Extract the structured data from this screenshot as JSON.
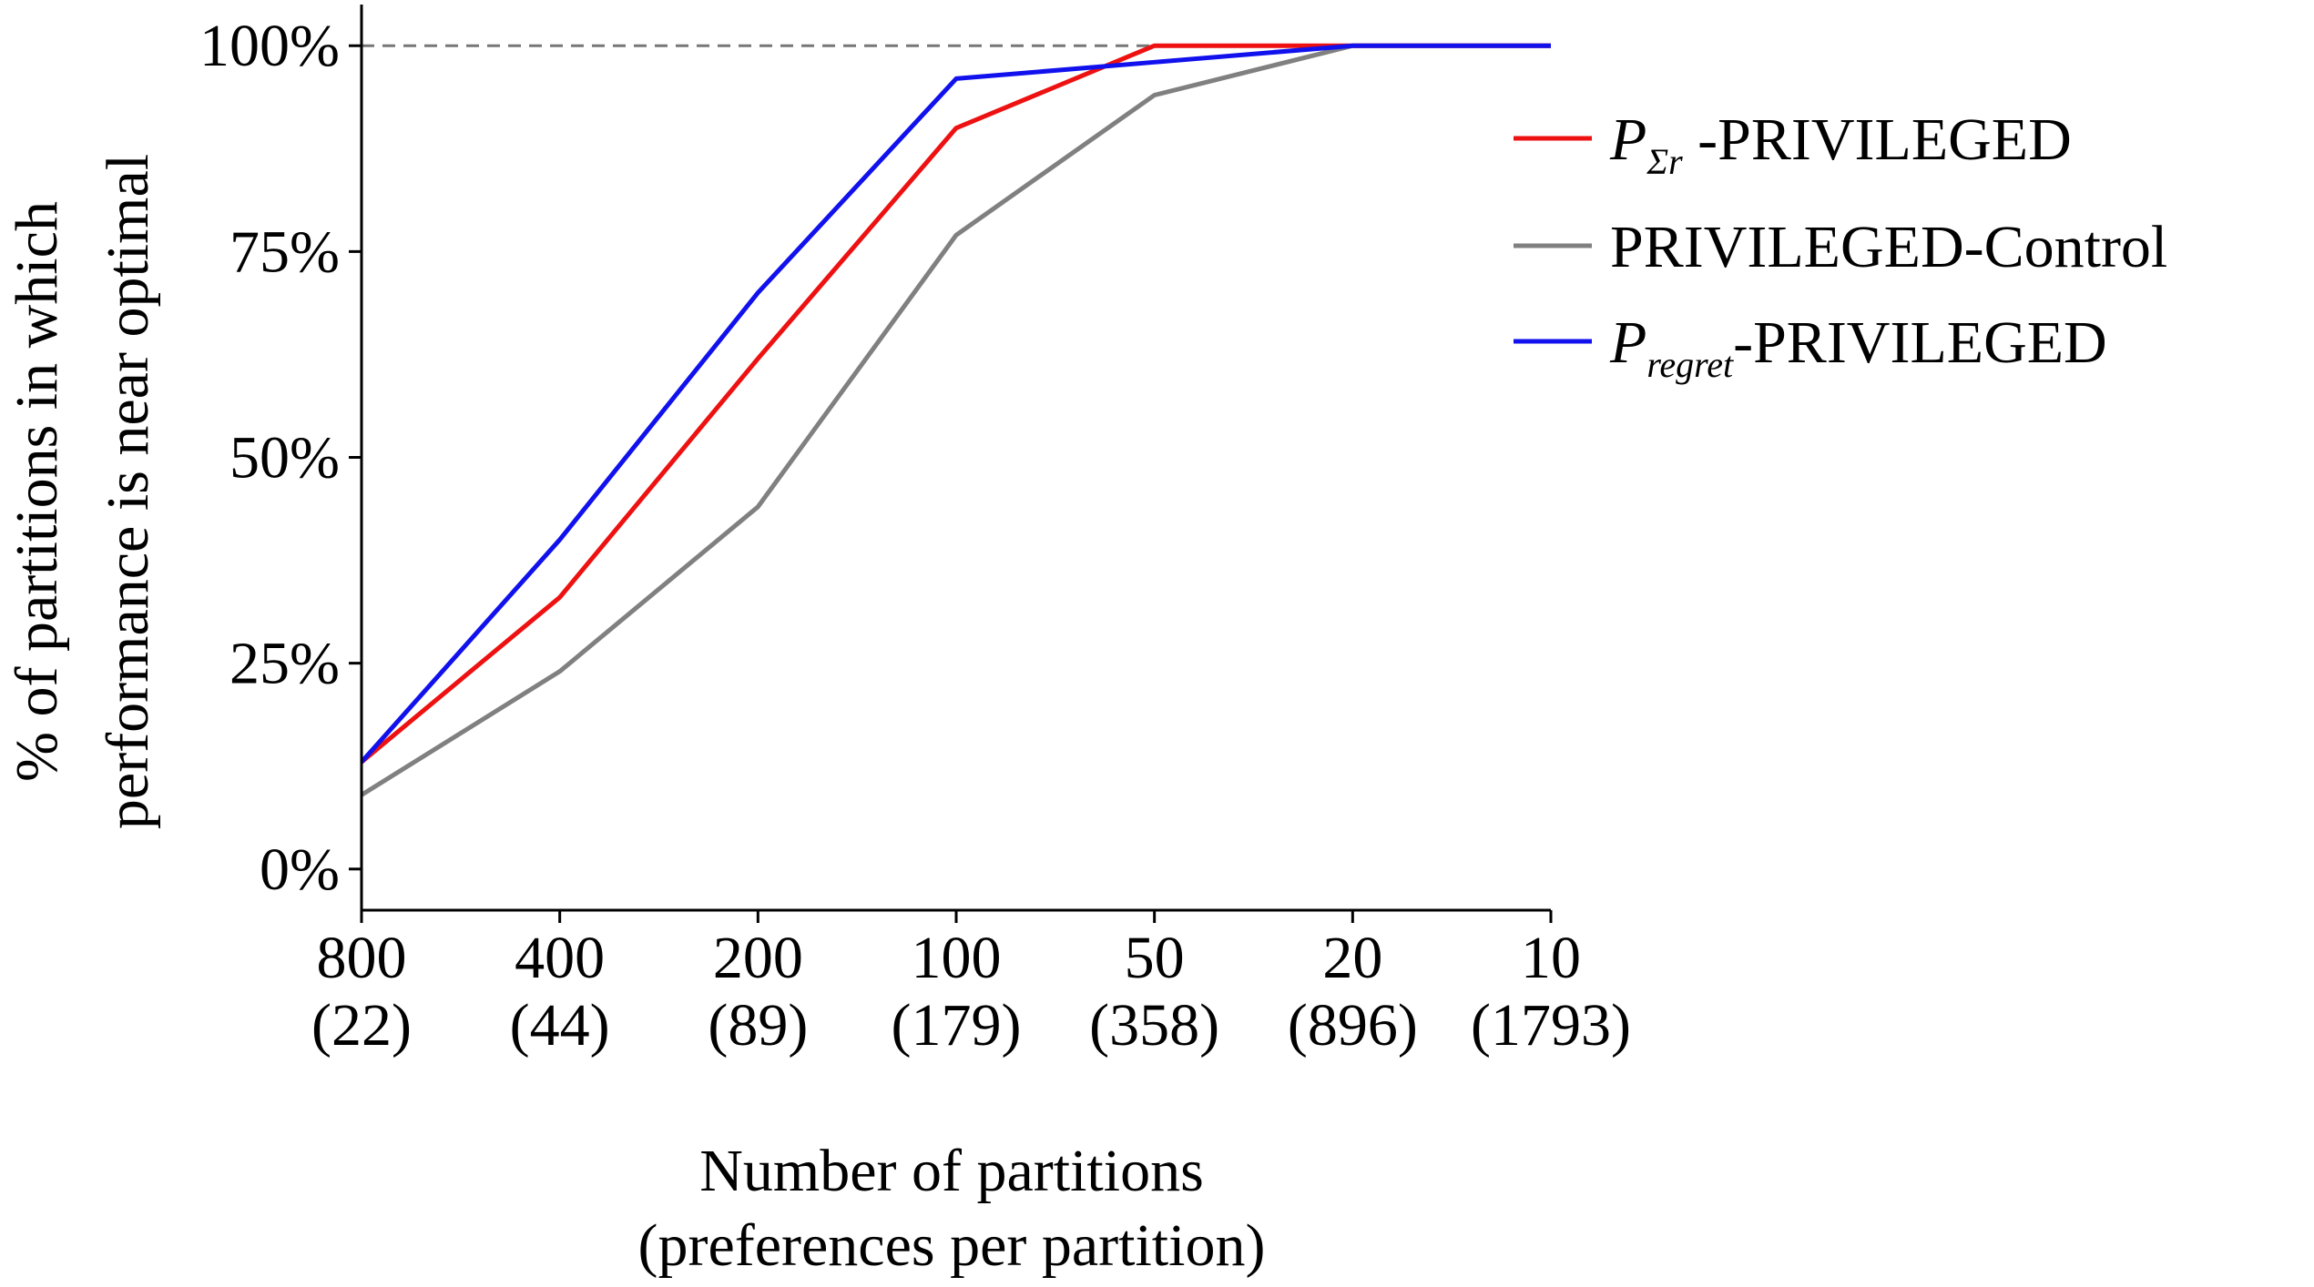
{
  "chart_data": {
    "type": "line",
    "title": "",
    "xlabel_lines": [
      "Number of partitions",
      "(preferences per partition)"
    ],
    "ylabel_lines": [
      "% of partitions in which",
      "performance is near optimal"
    ],
    "categories": [
      {
        "main": "800",
        "sub": "(22)"
      },
      {
        "main": "400",
        "sub": "(44)"
      },
      {
        "main": "200",
        "sub": "(89)"
      },
      {
        "main": "100",
        "sub": "(179)"
      },
      {
        "main": "50",
        "sub": "(358)"
      },
      {
        "main": "20",
        "sub": "(896)"
      },
      {
        "main": "10",
        "sub": "(1793)"
      }
    ],
    "y_ticks": [
      0,
      25,
      50,
      75,
      100
    ],
    "y_tick_labels": [
      "0%",
      "25%",
      "50%",
      "75%",
      "100%"
    ],
    "ylim": [
      -5,
      105
    ],
    "reference_line": {
      "y": 100,
      "style": "dashed",
      "color": "#777777"
    },
    "series": [
      {
        "name_parts": [
          "P",
          "Σr",
          " -PRIVILEGED"
        ],
        "color": "#ee1111",
        "values": [
          13,
          33,
          62,
          90,
          100,
          100,
          100
        ]
      },
      {
        "name_parts": [
          "",
          "",
          "PRIVILEGED-Control"
        ],
        "color": "#808080",
        "values": [
          9,
          24,
          44,
          77,
          94,
          100,
          100
        ]
      },
      {
        "name_parts": [
          "P",
          "regret",
          "-PRIVILEGED"
        ],
        "color": "#1111ee",
        "values": [
          13,
          40,
          70,
          96,
          98,
          100,
          100
        ]
      }
    ],
    "legend_position": "right"
  }
}
